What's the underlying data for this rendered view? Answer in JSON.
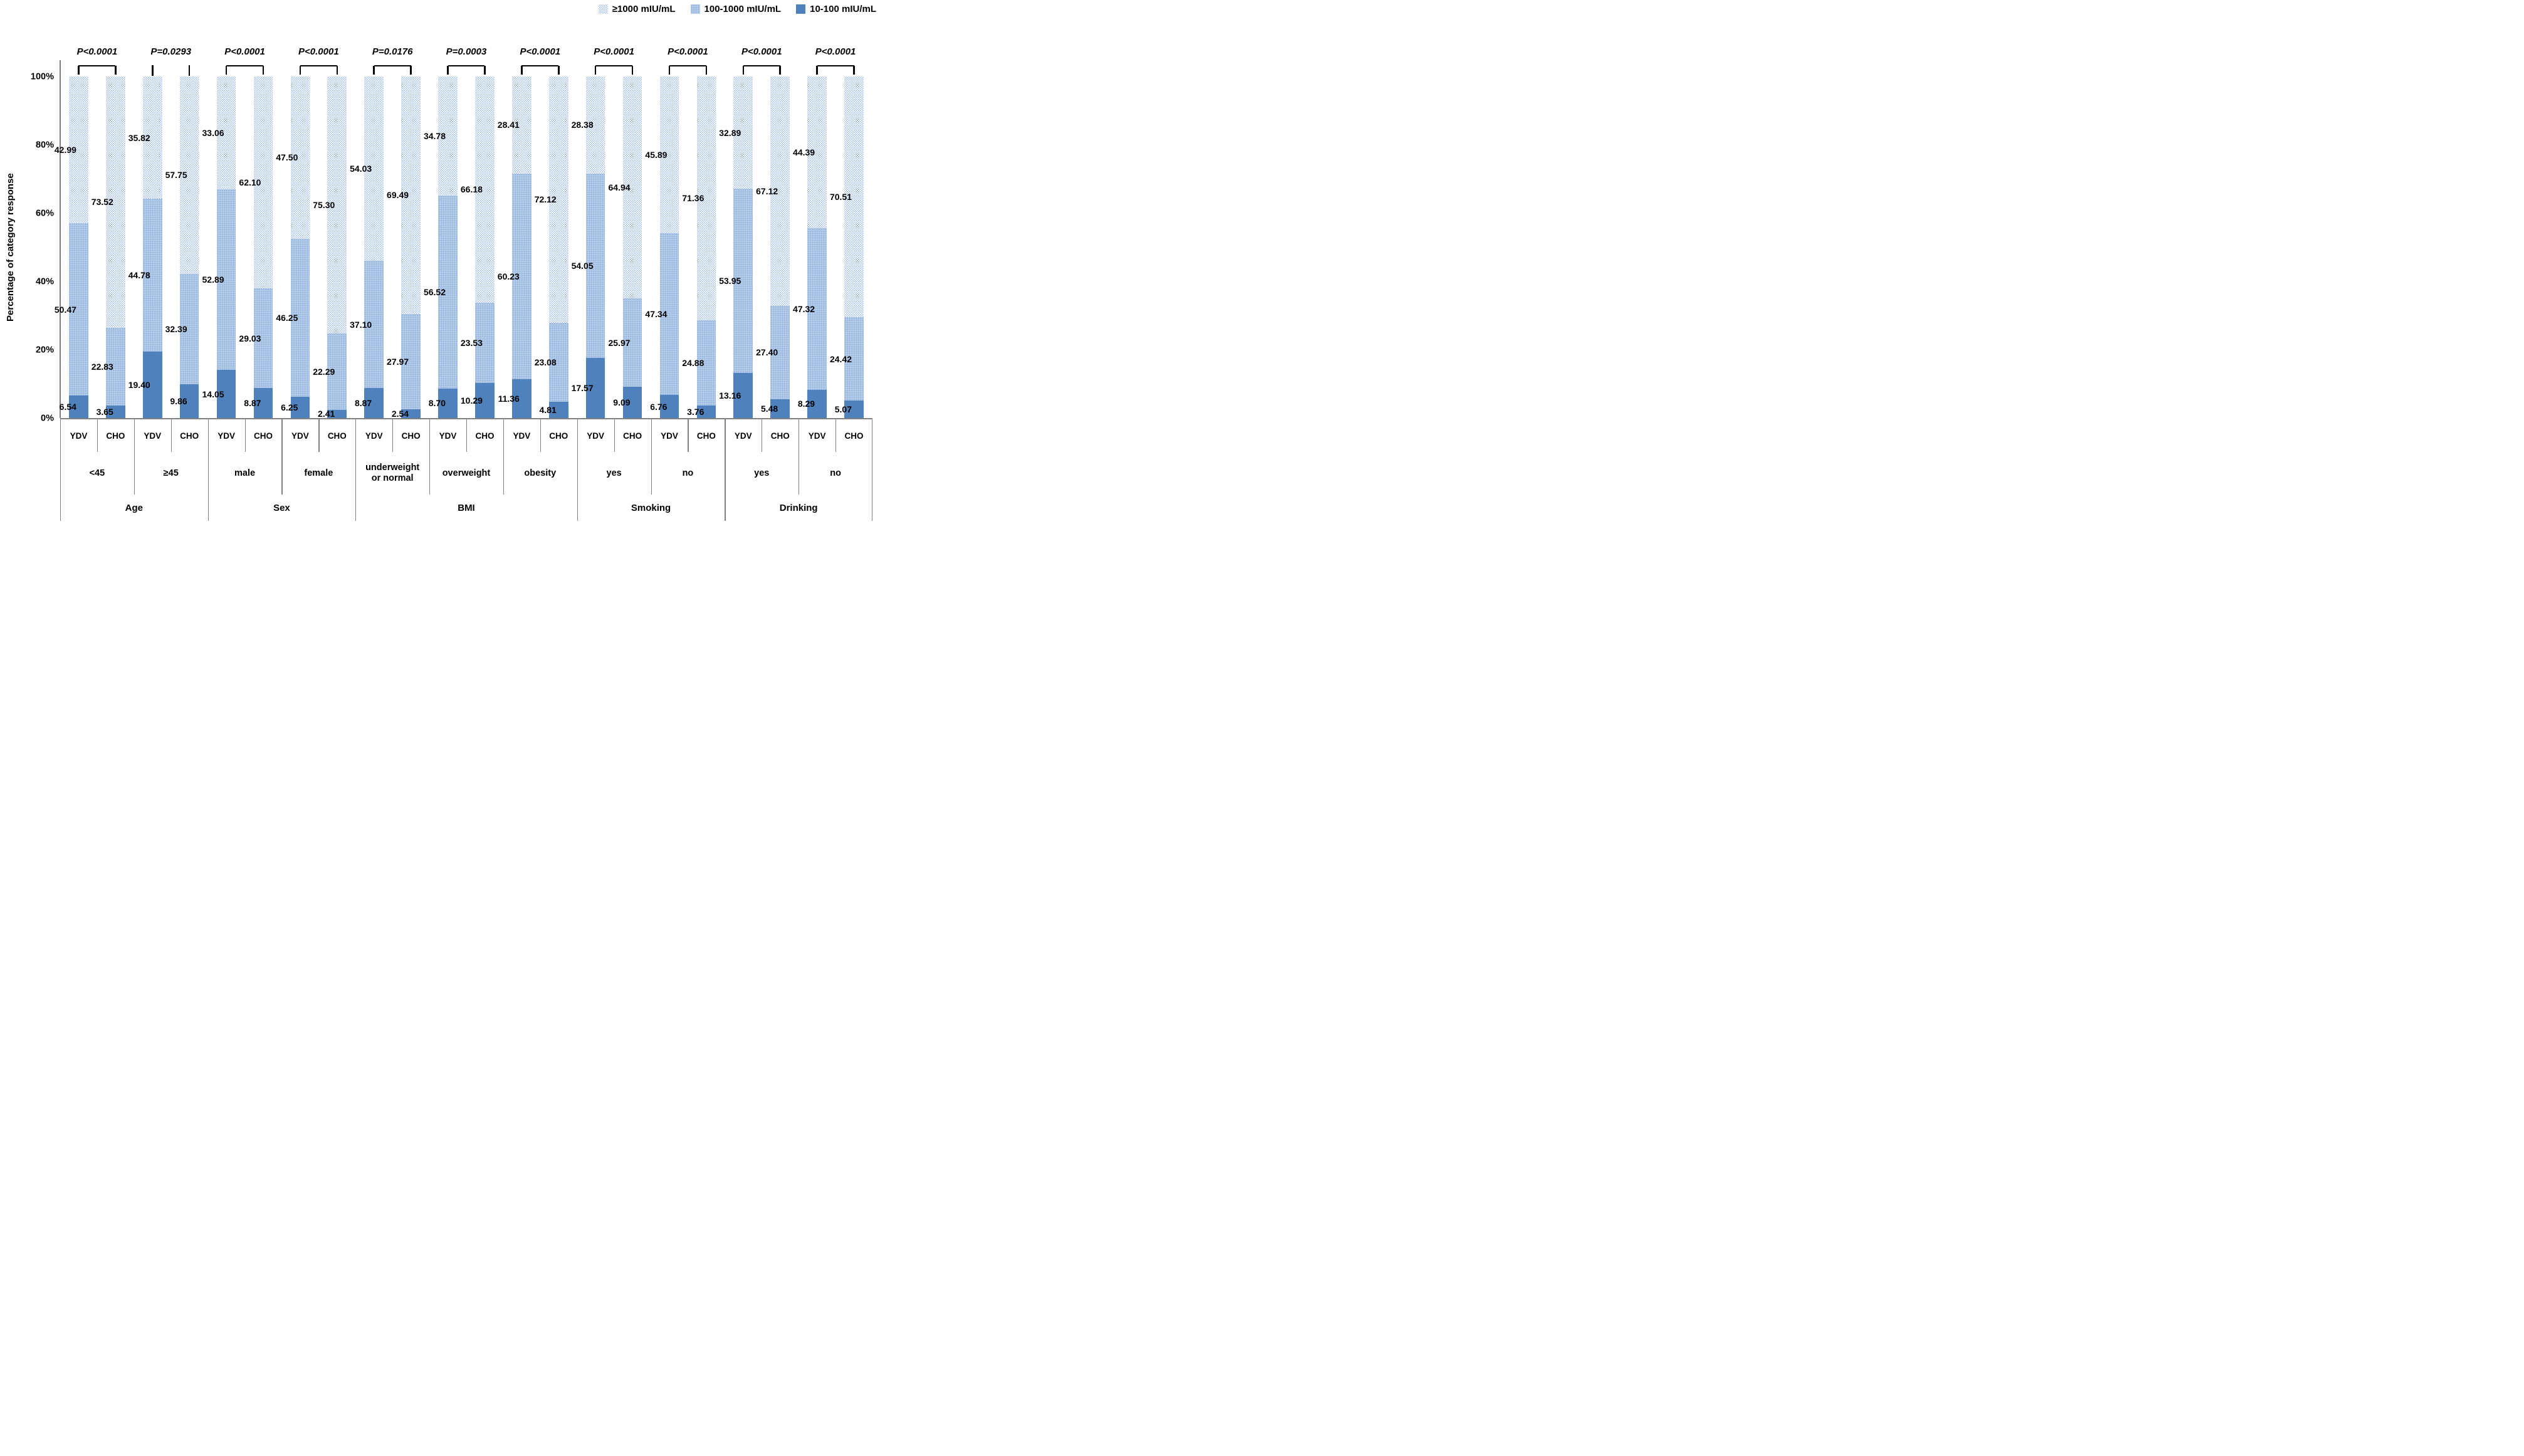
{
  "legend": {
    "items": [
      {
        "label": "≥1000 mIU/mL",
        "swatch": "dots-light"
      },
      {
        "label": "100-1000 mIU/mL",
        "swatch": "dots-medium"
      },
      {
        "label": "10-100 mIU/mL",
        "swatch": "solid"
      }
    ]
  },
  "y_axis": {
    "title": "Percentage of category response",
    "ticks": [
      "0%",
      "20%",
      "40%",
      "60%",
      "80%",
      "100%"
    ]
  },
  "colors": {
    "solid_blue": "#4f81bd",
    "medium_blue": "#b5cce9",
    "dot_blue": "#8fb2dc",
    "axis_gray": "#808080",
    "bracket_black": "#000000"
  },
  "chart_data": {
    "type": "bar",
    "stacked": true,
    "ylabel": "Percentage of category response",
    "ylim": [
      0,
      100
    ],
    "grid": false,
    "legend_position": "top-right",
    "series": [
      "10-100 mIU/mL",
      "100-1000 mIU/mL",
      "≥1000 mIU/mL"
    ],
    "series_note": "values listed bottom-to-top per bar: [10-100, 100-1000, ≥1000]",
    "groups": [
      {
        "label": "Age",
        "subgroups": [
          {
            "label": "<45",
            "p_value": "P<0.0001",
            "bracket": "full",
            "bars": [
              {
                "label": "YDV",
                "values": [
                  6.54,
                  50.47,
                  42.99
                ]
              },
              {
                "label": "CHO",
                "values": [
                  3.65,
                  22.83,
                  73.52
                ]
              }
            ]
          },
          {
            "label": "≥45",
            "p_value": "P=0.0293",
            "bracket": "ticks",
            "bars": [
              {
                "label": "YDV",
                "values": [
                  19.4,
                  44.78,
                  35.82
                ]
              },
              {
                "label": "CHO",
                "values": [
                  9.86,
                  32.39,
                  57.75
                ]
              }
            ]
          }
        ]
      },
      {
        "label": "Sex",
        "subgroups": [
          {
            "label": "male",
            "p_value": "P<0.0001",
            "bracket": "full",
            "bars": [
              {
                "label": "YDV",
                "values": [
                  14.05,
                  52.89,
                  33.06
                ]
              },
              {
                "label": "CHO",
                "values": [
                  8.87,
                  29.03,
                  62.1
                ]
              }
            ]
          },
          {
            "label": "female",
            "p_value": "P<0.0001",
            "bracket": "full",
            "bars": [
              {
                "label": "YDV",
                "values": [
                  6.25,
                  46.25,
                  47.5
                ]
              },
              {
                "label": "CHO",
                "values": [
                  2.41,
                  22.29,
                  75.3
                ]
              }
            ]
          }
        ]
      },
      {
        "label": "BMI",
        "subgroups": [
          {
            "label": "underweight\nor normal",
            "p_value": "P=0.0176",
            "bracket": "full",
            "bars": [
              {
                "label": "YDV",
                "values": [
                  8.87,
                  37.1,
                  54.03
                ]
              },
              {
                "label": "CHO",
                "values": [
                  2.54,
                  27.97,
                  69.49
                ]
              }
            ]
          },
          {
            "label": "overweight",
            "p_value": "P=0.0003",
            "bracket": "full",
            "bars": [
              {
                "label": "YDV",
                "values": [
                  8.7,
                  56.52,
                  34.78
                ]
              },
              {
                "label": "CHO",
                "values": [
                  10.29,
                  23.53,
                  66.18
                ]
              }
            ]
          },
          {
            "label": "obesity",
            "p_value": "P<0.0001",
            "bracket": "full",
            "bars": [
              {
                "label": "YDV",
                "values": [
                  11.36,
                  60.23,
                  28.41
                ]
              },
              {
                "label": "CHO",
                "values": [
                  4.81,
                  23.08,
                  72.12
                ]
              }
            ]
          }
        ]
      },
      {
        "label": "Smoking",
        "subgroups": [
          {
            "label": "yes",
            "p_value": "P<0.0001",
            "bracket": "full",
            "bars": [
              {
                "label": "YDV",
                "values": [
                  17.57,
                  54.05,
                  28.38
                ]
              },
              {
                "label": "CHO",
                "values": [
                  9.09,
                  25.97,
                  64.94
                ]
              }
            ]
          },
          {
            "label": "no",
            "p_value": "P<0.0001",
            "bracket": "full",
            "bars": [
              {
                "label": "YDV",
                "values": [
                  6.76,
                  47.34,
                  45.89
                ]
              },
              {
                "label": "CHO",
                "values": [
                  3.76,
                  24.88,
                  71.36
                ]
              }
            ]
          }
        ]
      },
      {
        "label": "Drinking",
        "subgroups": [
          {
            "label": "yes",
            "p_value": "P<0.0001",
            "bracket": "full",
            "bars": [
              {
                "label": "YDV",
                "values": [
                  13.16,
                  53.95,
                  32.89
                ]
              },
              {
                "label": "CHO",
                "values": [
                  5.48,
                  27.4,
                  67.12
                ]
              }
            ]
          },
          {
            "label": "no",
            "p_value": "P<0.0001",
            "bracket": "full",
            "bars": [
              {
                "label": "YDV",
                "values": [
                  8.29,
                  47.32,
                  44.39
                ]
              },
              {
                "label": "CHO",
                "values": [
                  5.07,
                  24.42,
                  70.51
                ]
              }
            ]
          }
        ]
      }
    ]
  }
}
